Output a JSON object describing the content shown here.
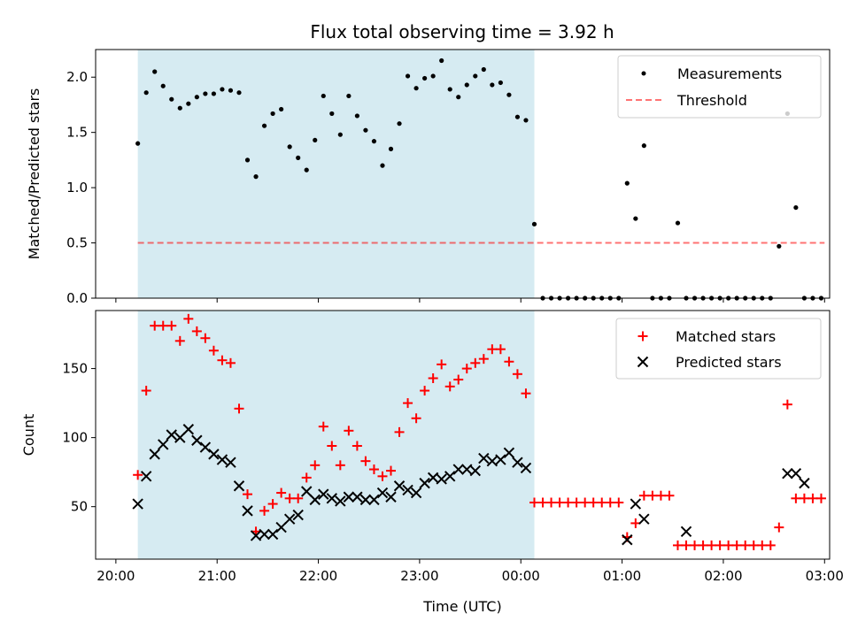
{
  "title": "Flux total observing time = 3.92 h",
  "colors": {
    "shade": "#add8e6",
    "threshold": "#ff0000",
    "matched": "#ff0000",
    "predicted": "#000000",
    "measurement": "#000000"
  },
  "chart_data": [
    {
      "type": "scatter",
      "ylabel": "Matched/Predicted stars",
      "xlim": [
        "20:00",
        "03:00"
      ],
      "ylim": [
        0,
        2.25
      ],
      "yticks": [
        "0.0",
        "0.5",
        "1.0",
        "1.5",
        "2.0"
      ],
      "ytick_values": [
        0,
        0.5,
        1.0,
        1.5,
        2.0
      ],
      "shaded_interval": [
        "20:13",
        "00:08"
      ],
      "threshold": {
        "name": "Threshold",
        "value": 0.5,
        "x_range": [
          "20:13",
          "03:00"
        ],
        "style": "dashed"
      },
      "legend": {
        "placement": "top-right",
        "entries": [
          "Measurements",
          "Threshold"
        ]
      },
      "series": [
        {
          "name": "Measurements",
          "marker": "dot",
          "x": [
            "20:13",
            "20:18",
            "20:23",
            "20:28",
            "20:33",
            "20:38",
            "20:43",
            "20:48",
            "20:53",
            "20:58",
            "21:03",
            "21:08",
            "21:13",
            "21:18",
            "21:23",
            "21:28",
            "21:33",
            "21:38",
            "21:43",
            "21:48",
            "21:53",
            "21:58",
            "22:03",
            "22:08",
            "22:13",
            "22:18",
            "22:23",
            "22:28",
            "22:33",
            "22:38",
            "22:43",
            "22:48",
            "22:53",
            "22:58",
            "23:03",
            "23:08",
            "23:13",
            "23:18",
            "23:23",
            "23:28",
            "23:33",
            "23:38",
            "23:43",
            "23:48",
            "23:53",
            "23:58",
            "00:03",
            "00:08",
            "00:13",
            "00:18",
            "00:23",
            "00:28",
            "00:33",
            "00:38",
            "00:43",
            "00:48",
            "00:53",
            "00:58",
            "01:03",
            "01:08",
            "01:13",
            "01:18",
            "01:23",
            "01:28",
            "01:33",
            "01:38",
            "01:43",
            "01:48",
            "01:53",
            "01:58",
            "02:03",
            "02:08",
            "02:13",
            "02:18",
            "02:23",
            "02:28",
            "02:33",
            "02:38",
            "02:43",
            "02:48",
            "02:53",
            "02:58"
          ],
          "values": [
            1.4,
            1.86,
            2.05,
            1.92,
            1.8,
            1.72,
            1.76,
            1.82,
            1.85,
            1.85,
            1.89,
            1.88,
            1.86,
            1.25,
            1.1,
            1.56,
            1.67,
            1.71,
            1.37,
            1.27,
            1.16,
            1.43,
            1.83,
            1.67,
            1.48,
            1.83,
            1.65,
            1.52,
            1.42,
            1.2,
            1.35,
            1.58,
            2.01,
            1.9,
            1.99,
            2.01,
            2.15,
            1.89,
            1.82,
            1.93,
            2.01,
            2.07,
            1.93,
            1.95,
            1.84,
            1.64,
            1.61,
            0.67,
            0,
            0,
            0,
            0,
            0,
            0,
            0,
            0,
            0,
            0,
            1.04,
            0.72,
            1.38,
            0,
            0,
            0,
            0.68,
            0,
            0,
            0,
            0,
            0,
            0,
            0,
            0,
            0,
            0,
            0,
            0.47,
            1.67,
            0.82,
            0,
            0,
            0
          ]
        }
      ]
    },
    {
      "type": "scatter",
      "xlabel": "Time (UTC)",
      "ylabel": "Count",
      "xlim": [
        "20:00",
        "03:00"
      ],
      "xticks": [
        "20:00",
        "21:00",
        "22:00",
        "23:00",
        "00:00",
        "01:00",
        "02:00",
        "03:00"
      ],
      "ylim": [
        12,
        192
      ],
      "yticks": [
        "50",
        "100",
        "150"
      ],
      "ytick_values": [
        50,
        100,
        150
      ],
      "shaded_interval": [
        "20:13",
        "00:08"
      ],
      "legend": {
        "placement": "top-right",
        "entries": [
          "Matched stars",
          "Predicted stars"
        ]
      },
      "series": [
        {
          "name": "Matched stars",
          "marker": "plus",
          "x": [
            "20:13",
            "20:18",
            "20:23",
            "20:28",
            "20:33",
            "20:38",
            "20:43",
            "20:48",
            "20:53",
            "20:58",
            "21:03",
            "21:08",
            "21:13",
            "21:18",
            "21:23",
            "21:28",
            "21:33",
            "21:38",
            "21:43",
            "21:48",
            "21:53",
            "21:58",
            "22:03",
            "22:08",
            "22:13",
            "22:18",
            "22:23",
            "22:28",
            "22:33",
            "22:38",
            "22:43",
            "22:48",
            "22:53",
            "22:58",
            "23:03",
            "23:08",
            "23:13",
            "23:18",
            "23:23",
            "23:28",
            "23:33",
            "23:38",
            "23:43",
            "23:48",
            "23:53",
            "23:58",
            "00:03",
            "00:08",
            "00:13",
            "00:18",
            "00:23",
            "00:28",
            "00:33",
            "00:38",
            "00:43",
            "00:48",
            "00:53",
            "00:58",
            "01:03",
            "01:08",
            "01:13",
            "01:18",
            "01:23",
            "01:28",
            "01:33",
            "01:38",
            "01:43",
            "01:48",
            "01:53",
            "01:58",
            "02:03",
            "02:08",
            "02:13",
            "02:18",
            "02:23",
            "02:28",
            "02:33",
            "02:38",
            "02:43",
            "02:48",
            "02:53",
            "02:58"
          ],
          "values": [
            73,
            134,
            181,
            181,
            181,
            170,
            186,
            177,
            172,
            163,
            156,
            154,
            121,
            59,
            32,
            47,
            52,
            60,
            56,
            56,
            71,
            80,
            108,
            94,
            80,
            105,
            94,
            83,
            77,
            72,
            76,
            104,
            125,
            114,
            134,
            143,
            153,
            137,
            142,
            150,
            154,
            157,
            164,
            164,
            155,
            146,
            132,
            53,
            53,
            53,
            53,
            53,
            53,
            53,
            53,
            53,
            53,
            53,
            28,
            38,
            58,
            58,
            58,
            58,
            22,
            22,
            22,
            22,
            22,
            22,
            22,
            22,
            22,
            22,
            22,
            22,
            35,
            124,
            56,
            56,
            56,
            56
          ]
        },
        {
          "name": "Predicted stars",
          "marker": "x",
          "x": [
            "20:13",
            "20:18",
            "20:23",
            "20:28",
            "20:33",
            "20:38",
            "20:43",
            "20:48",
            "20:53",
            "20:58",
            "21:03",
            "21:08",
            "21:13",
            "21:18",
            "21:23",
            "21:28",
            "21:33",
            "21:38",
            "21:43",
            "21:48",
            "21:53",
            "21:58",
            "22:03",
            "22:08",
            "22:13",
            "22:18",
            "22:23",
            "22:28",
            "22:33",
            "22:38",
            "22:43",
            "22:48",
            "22:53",
            "22:58",
            "23:03",
            "23:08",
            "23:13",
            "23:18",
            "23:23",
            "23:28",
            "23:33",
            "23:38",
            "23:43",
            "23:48",
            "23:53",
            "23:58",
            "00:03",
            "00:08",
            "01:03",
            "01:08",
            "01:13",
            "01:38",
            "02:38",
            "02:43",
            "02:48"
          ],
          "values": [
            52,
            72,
            88,
            95,
            102,
            100,
            106,
            98,
            93,
            88,
            84,
            82,
            65,
            47,
            29,
            30,
            30,
            35,
            41,
            44,
            61,
            55,
            59,
            56,
            54,
            57,
            57,
            55,
            55,
            60,
            57,
            65,
            62,
            60,
            67,
            71,
            70,
            72,
            77,
            77,
            76,
            85,
            83,
            84,
            89,
            82,
            78,
            null,
            26,
            52,
            41,
            32,
            74,
            74,
            67
          ]
        }
      ]
    }
  ]
}
